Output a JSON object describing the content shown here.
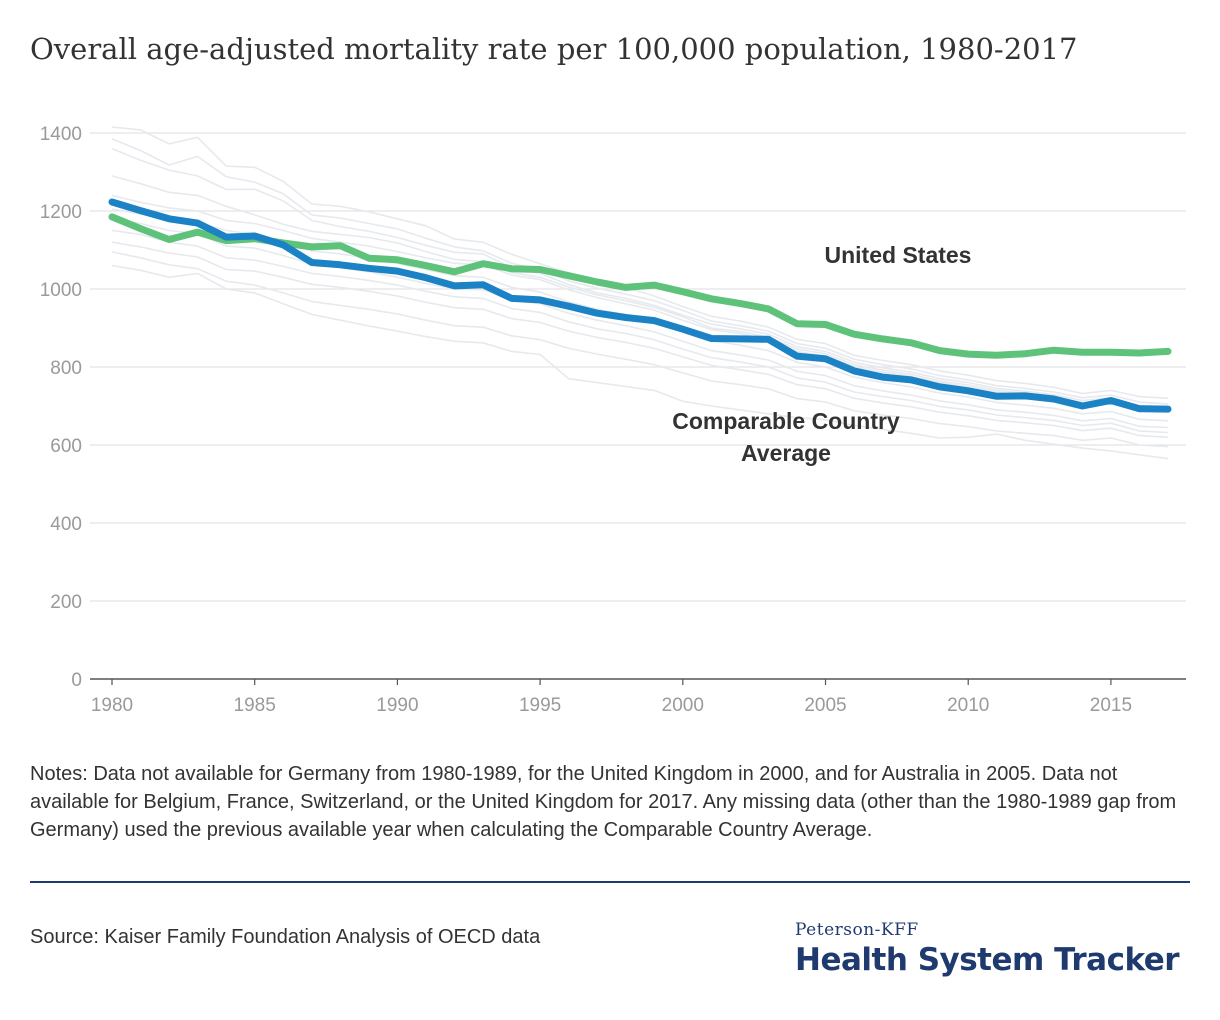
{
  "chart_data": {
    "type": "line",
    "title": "Overall age-adjusted mortality rate per 100,000 population, 1980-2017",
    "xlabel": "",
    "ylabel": "",
    "xlim": [
      1980,
      2017
    ],
    "ylim": [
      0,
      1400
    ],
    "x_ticks": [
      1980,
      1985,
      1990,
      1995,
      2000,
      2005,
      2010,
      2015
    ],
    "y_ticks": [
      0,
      200,
      400,
      600,
      800,
      1000,
      1200,
      1400
    ],
    "grid": "horizontal",
    "x": [
      1980,
      1981,
      1982,
      1983,
      1984,
      1985,
      1986,
      1987,
      1988,
      1989,
      1990,
      1991,
      1992,
      1993,
      1994,
      1995,
      1996,
      1997,
      1998,
      1999,
      2000,
      2001,
      2002,
      2003,
      2004,
      2005,
      2006,
      2007,
      2008,
      2009,
      2010,
      2011,
      2012,
      2013,
      2014,
      2015,
      2016,
      2017
    ],
    "series": [
      {
        "name": "United States",
        "color": "#5ec27b",
        "values": [
          1185,
          1155,
          1127,
          1146,
          1124,
          1129,
          1118,
          1108,
          1111,
          1079,
          1075,
          1060,
          1044,
          1065,
          1052,
          1050,
          1034,
          1018,
          1004,
          1010,
          993,
          975,
          963,
          949,
          911,
          909,
          884,
          872,
          862,
          842,
          833,
          830,
          834,
          843,
          838,
          838,
          836,
          840
        ]
      },
      {
        "name": "Comparable Country Average",
        "color": "#1b82c5",
        "values": [
          1223,
          1201,
          1180,
          1169,
          1133,
          1136,
          1113,
          1068,
          1062,
          1053,
          1046,
          1029,
          1008,
          1011,
          976,
          972,
          956,
          938,
          927,
          919,
          897,
          873,
          872,
          871,
          828,
          821,
          790,
          774,
          767,
          749,
          739,
          725,
          726,
          718,
          700,
          714,
          693,
          692
        ]
      }
    ],
    "background_series_color": "#e6e9ed",
    "background_series": [
      [
        1415,
        1408,
        1372,
        1389,
        1315,
        1312,
        1276,
        1218,
        1212,
        1198,
        1180,
        1162,
        1128,
        1120,
        1089,
        1065,
        1041,
        1018,
        1004,
        982,
        955,
        930,
        918,
        902,
        871,
        860,
        830,
        817,
        806,
        790,
        779,
        765,
        758,
        748,
        732,
        740,
        724,
        720
      ],
      [
        1385,
        1355,
        1318,
        1340,
        1288,
        1274,
        1244,
        1190,
        1182,
        1168,
        1154,
        1130,
        1108,
        1098,
        1066,
        1050,
        1021,
        1002,
        987,
        970,
        945,
        918,
        906,
        892,
        860,
        848,
        820,
        806,
        795,
        778,
        767,
        752,
        745,
        736,
        721,
        728,
        710,
        705
      ],
      [
        1360,
        1330,
        1305,
        1290,
        1255,
        1256,
        1226,
        1176,
        1160,
        1148,
        1132,
        1112,
        1094,
        1090,
        1055,
        1040,
        1011,
        990,
        976,
        958,
        933,
        910,
        898,
        884,
        852,
        840,
        812,
        798,
        787,
        770,
        760,
        745,
        738,
        729,
        714,
        721,
        700,
        698
      ],
      [
        1290,
        1270,
        1248,
        1240,
        1212,
        1190,
        1166,
        1148,
        1140,
        1132,
        1118,
        1096,
        1076,
        1070,
        1042,
        1030,
        1005,
        985,
        970,
        953,
        929,
        900,
        891,
        877,
        846,
        834,
        806,
        792,
        781,
        764,
        754,
        740,
        733,
        724,
        709,
        716,
        695,
        690
      ],
      [
        1240,
        1222,
        1208,
        1200,
        1176,
        1168,
        1150,
        1130,
        1120,
        1110,
        1096,
        1080,
        1066,
        1062,
        1036,
        1024,
        998,
        978,
        962,
        946,
        920,
        896,
        886,
        870,
        840,
        828,
        801,
        787,
        776,
        760,
        749,
        735,
        728,
        719,
        704,
        711,
        690,
        686
      ],
      [
        1205,
        1192,
        1184,
        1170,
        1150,
        1140,
        1120,
        1098,
        1090,
        1079,
        1066,
        1050,
        1034,
        1030,
        1004,
        992,
        967,
        948,
        934,
        918,
        893,
        868,
        856,
        842,
        812,
        800,
        774,
        760,
        749,
        733,
        723,
        709,
        702,
        694,
        680,
        686,
        666,
        662
      ],
      [
        1180,
        1168,
        1150,
        1142,
        1110,
        1105,
        1086,
        1064,
        1055,
        1044,
        1030,
        1014,
        1000,
        998,
        972,
        962,
        938,
        920,
        906,
        890,
        866,
        842,
        831,
        818,
        789,
        778,
        752,
        739,
        728,
        713,
        703,
        690,
        684,
        676,
        662,
        668,
        648,
        645
      ],
      [
        1150,
        1140,
        1120,
        1110,
        1080,
        1074,
        1058,
        1040,
        1032,
        1022,
        1010,
        994,
        980,
        976,
        950,
        940,
        916,
        898,
        886,
        870,
        846,
        824,
        813,
        800,
        772,
        761,
        736,
        724,
        714,
        699,
        690,
        677,
        670,
        663,
        650,
        656,
        636,
        632
      ],
      [
        1120,
        1108,
        1092,
        1082,
        1050,
        1046,
        1030,
        1012,
        1004,
        994,
        982,
        966,
        952,
        948,
        924,
        914,
        892,
        876,
        863,
        848,
        826,
        804,
        793,
        781,
        755,
        744,
        720,
        708,
        698,
        684,
        675,
        663,
        657,
        650,
        637,
        643,
        624,
        620
      ],
      [
        1095,
        1080,
        1062,
        1052,
        1020,
        1010,
        990,
        968,
        958,
        948,
        936,
        920,
        906,
        902,
        880,
        870,
        848,
        833,
        820,
        806,
        785,
        764,
        755,
        744,
        719,
        710,
        688,
        677,
        668,
        655,
        647,
        636,
        630,
        624,
        612,
        618,
        600,
        596
      ],
      [
        1060,
        1048,
        1030,
        1040,
        1000,
        990,
        962,
        935,
        920,
        905,
        892,
        878,
        866,
        862,
        840,
        832,
        770,
        760,
        750,
        740,
        712,
        700,
        690,
        680,
        670,
        665,
        650,
        640,
        630,
        618,
        620,
        628,
        612,
        602,
        592,
        585,
        575,
        565
      ]
    ]
  },
  "annotations": {
    "us_label": "United States",
    "cca_label_line1": "Comparable Country",
    "cca_label_line2": "Average"
  },
  "notes": "Notes: Data not available for Germany from 1980-1989, for the United Kingdom in 2000, and for Australia in 2005. Data not available for Belgium, France, Switzerland, or the United Kingdom for 2017. Any missing data (other than the 1980-1989 gap from Germany) used the previous available year when calculating the Comparable Country Average.",
  "source": "Source: Kaiser Family Foundation Analysis of OECD data",
  "brand": {
    "small": "Peterson-KFF",
    "big": "Health System Tracker",
    "color": "#1f3a6e"
  }
}
